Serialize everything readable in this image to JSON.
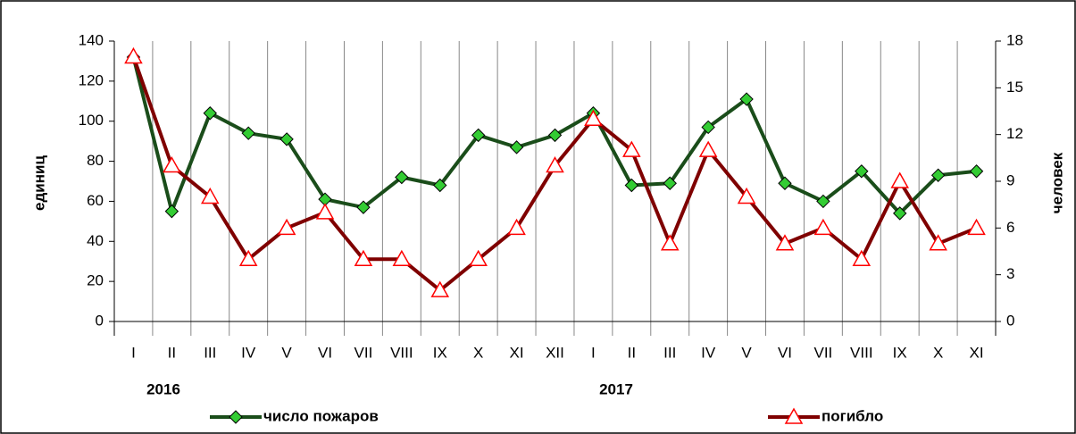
{
  "chart_data": {
    "type": "line",
    "categories": [
      "I",
      "II",
      "III",
      "IV",
      "V",
      "VI",
      "VII",
      "VIII",
      "IX",
      "X",
      "XI",
      "XII",
      "I",
      "II",
      "III",
      "IV",
      "V",
      "VI",
      "VII",
      "VIII",
      "IX",
      "X",
      "XI"
    ],
    "annotations": [
      "2016",
      "2017"
    ],
    "ylabel": "единиц",
    "y2label": "человек",
    "ylim": [
      0,
      140
    ],
    "yticks": [
      0,
      20,
      40,
      60,
      80,
      100,
      120,
      140
    ],
    "y2lim": [
      0,
      18
    ],
    "y2ticks": [
      0,
      3,
      6,
      9,
      12,
      15,
      18
    ],
    "legend": "bottom",
    "series": [
      {
        "name": "число пожаров",
        "color": "#1a4d1a",
        "marker_color": "#33cc33",
        "marker": "diamond",
        "values": [
          132,
          55,
          104,
          94,
          91,
          61,
          57,
          72,
          68,
          93,
          87,
          93,
          104,
          68,
          69,
          97,
          111,
          69,
          60,
          75,
          54,
          73,
          75
        ]
      },
      {
        "name": "погибло",
        "color": "#7f0000",
        "marker_color": "#ff0000",
        "marker": "triangle",
        "axis": "y2",
        "values": [
          17,
          10,
          8,
          4,
          6,
          7,
          4,
          4,
          2,
          4,
          6,
          10,
          13,
          11,
          5,
          11,
          8,
          5,
          6,
          4,
          9,
          5,
          6
        ]
      }
    ]
  }
}
